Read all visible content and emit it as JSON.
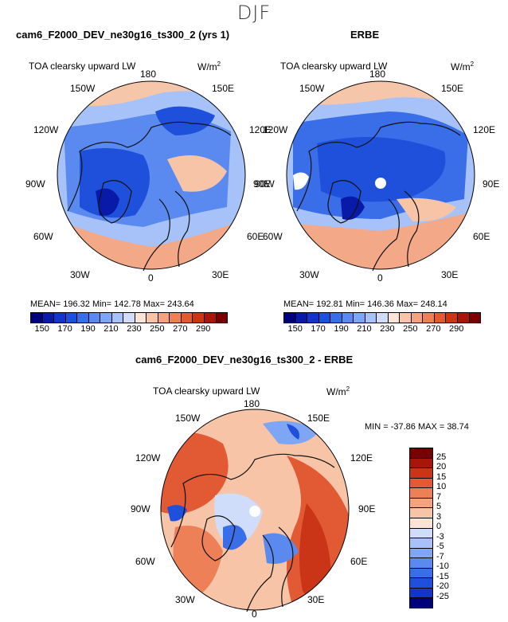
{
  "season": "DJF",
  "panels": [
    {
      "title": "cam6_F2000_DEV_ne30g16_ts300_2 (yrs 1)",
      "variable": "TOA clearsky upward LW",
      "units_prefix": "W/m",
      "units_exp": "2",
      "stats": "MEAN= 196.32   Min= 142.78   Max= 243.64"
    },
    {
      "title": "ERBE",
      "variable": "TOA clearsky upward LW",
      "units_prefix": "W/m",
      "units_exp": "2",
      "stats": "MEAN= 192.81   Min= 146.36   Max= 248.14"
    }
  ],
  "diff": {
    "title": "cam6_F2000_DEV_ne30g16_ts300_2 - ERBE",
    "variable": "TOA clearsky upward LW",
    "units_prefix": "W/m",
    "units_exp": "2",
    "minmax": "MIN = -37.86  MAX =  38.74"
  },
  "lon_labels": {
    "top": "180",
    "ul1": "150W",
    "ur1": "150E",
    "ul2": "120W",
    "ur2": "120E",
    "l": "90W",
    "r": "90E",
    "ll2": "60W",
    "lr2": "60E",
    "ll1": "30W",
    "lr1": "30E",
    "bottom": "0"
  },
  "colorbar_main": {
    "ticks": [
      "150",
      "170",
      "190",
      "210",
      "230",
      "250",
      "270",
      "290"
    ],
    "colors": [
      "#00007a",
      "#0a1aa8",
      "#1435c8",
      "#1f50dc",
      "#3a6ee8",
      "#5a8af0",
      "#7ea6f5",
      "#a6c2f8",
      "#cfdcfa",
      "#fbe4d6",
      "#f7c4a8",
      "#f3a380",
      "#ee8058",
      "#e25a34",
      "#c93516",
      "#a8160a",
      "#7a0000"
    ]
  },
  "colorbar_diff": {
    "ticks": [
      "25",
      "20",
      "15",
      "10",
      "7",
      "5",
      "3",
      "0",
      "-3",
      "-5",
      "-7",
      "-10",
      "-15",
      "-20",
      "-25"
    ],
    "colors": [
      "#7a0000",
      "#a8160a",
      "#c93516",
      "#e25a34",
      "#ee8058",
      "#f3a380",
      "#f7c4a8",
      "#fbe4d6",
      "#cfdcfa",
      "#a6c2f8",
      "#7ea6f5",
      "#5a8af0",
      "#3a6ee8",
      "#1f50dc",
      "#1435c8",
      "#00007a"
    ]
  }
}
